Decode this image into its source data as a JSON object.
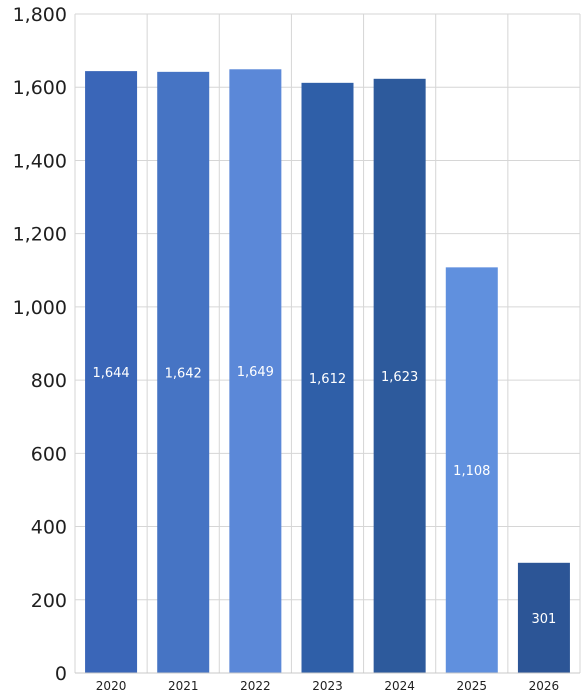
{
  "chart_data": {
    "type": "bar",
    "title": "",
    "xlabel": "",
    "ylabel": "",
    "categories": [
      "2020",
      "2021",
      "2022",
      "2023",
      "2024",
      "2025",
      "2026"
    ],
    "values": [
      1644,
      1642,
      1649,
      1612,
      1623,
      1108,
      301
    ],
    "value_labels": [
      "1,644",
      "1,642",
      "1,649",
      "1,612",
      "1,623",
      "1,108",
      "301"
    ],
    "bar_colors": [
      "#3a66b8",
      "#4674c4",
      "#5b88d8",
      "#2f5fa8",
      "#2d5a9c",
      "#6090de",
      "#2c5596"
    ],
    "ylim": [
      0,
      1800
    ],
    "yticks": [
      0,
      200,
      400,
      600,
      800,
      1000,
      1200,
      1400,
      1600,
      1800
    ],
    "ytick_labels": [
      "0",
      "200",
      "400",
      "600",
      "800",
      "1,000",
      "1,200",
      "1,400",
      "1,600",
      "1,800"
    ],
    "grid": true,
    "legend": "none"
  }
}
